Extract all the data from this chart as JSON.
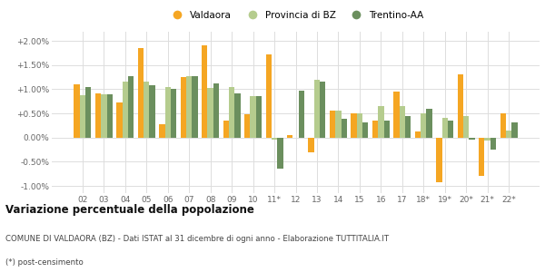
{
  "categories": [
    "02",
    "03",
    "04",
    "05",
    "06",
    "07",
    "08",
    "09",
    "10",
    "11*",
    "12",
    "13",
    "14",
    "15",
    "16",
    "17",
    "18*",
    "19*",
    "20*",
    "21*",
    "22*"
  ],
  "valdaora": [
    1.1,
    0.92,
    0.72,
    1.85,
    0.28,
    1.25,
    1.9,
    0.35,
    0.48,
    1.72,
    0.05,
    -0.3,
    0.55,
    0.5,
    0.35,
    0.95,
    0.12,
    -0.93,
    1.3,
    -0.8,
    0.5
  ],
  "provincia_bz": [
    0.88,
    0.9,
    1.15,
    1.15,
    1.05,
    1.28,
    1.02,
    1.05,
    0.85,
    -0.05,
    0.0,
    1.2,
    0.55,
    0.5,
    0.65,
    0.65,
    0.5,
    0.4,
    0.45,
    -0.07,
    0.15
  ],
  "trentino_aa": [
    1.05,
    0.9,
    1.28,
    1.08,
    1.0,
    1.28,
    1.12,
    0.92,
    0.85,
    -0.65,
    0.98,
    1.15,
    0.38,
    0.32,
    0.35,
    0.45,
    0.6,
    0.35,
    -0.05,
    -0.25,
    0.32
  ],
  "color_valdaora": "#f5a623",
  "color_provincia": "#b5cc8e",
  "color_trentino": "#6b8f5e",
  "title": "Variazione percentuale della popolazione",
  "subtitle": "COMUNE DI VALDAORA (BZ) - Dati ISTAT al 31 dicembre di ogni anno - Elaborazione TUTTITALIA.IT",
  "footnote": "(*) post-censimento",
  "legend_labels": [
    "Valdaora",
    "Provincia di BZ",
    "Trentino-AA"
  ],
  "ylim": [
    -1.15,
    2.2
  ],
  "yticks": [
    -1.0,
    -0.5,
    0.0,
    0.5,
    1.0,
    1.5,
    2.0
  ],
  "background_color": "#ffffff",
  "grid_color": "#dddddd"
}
